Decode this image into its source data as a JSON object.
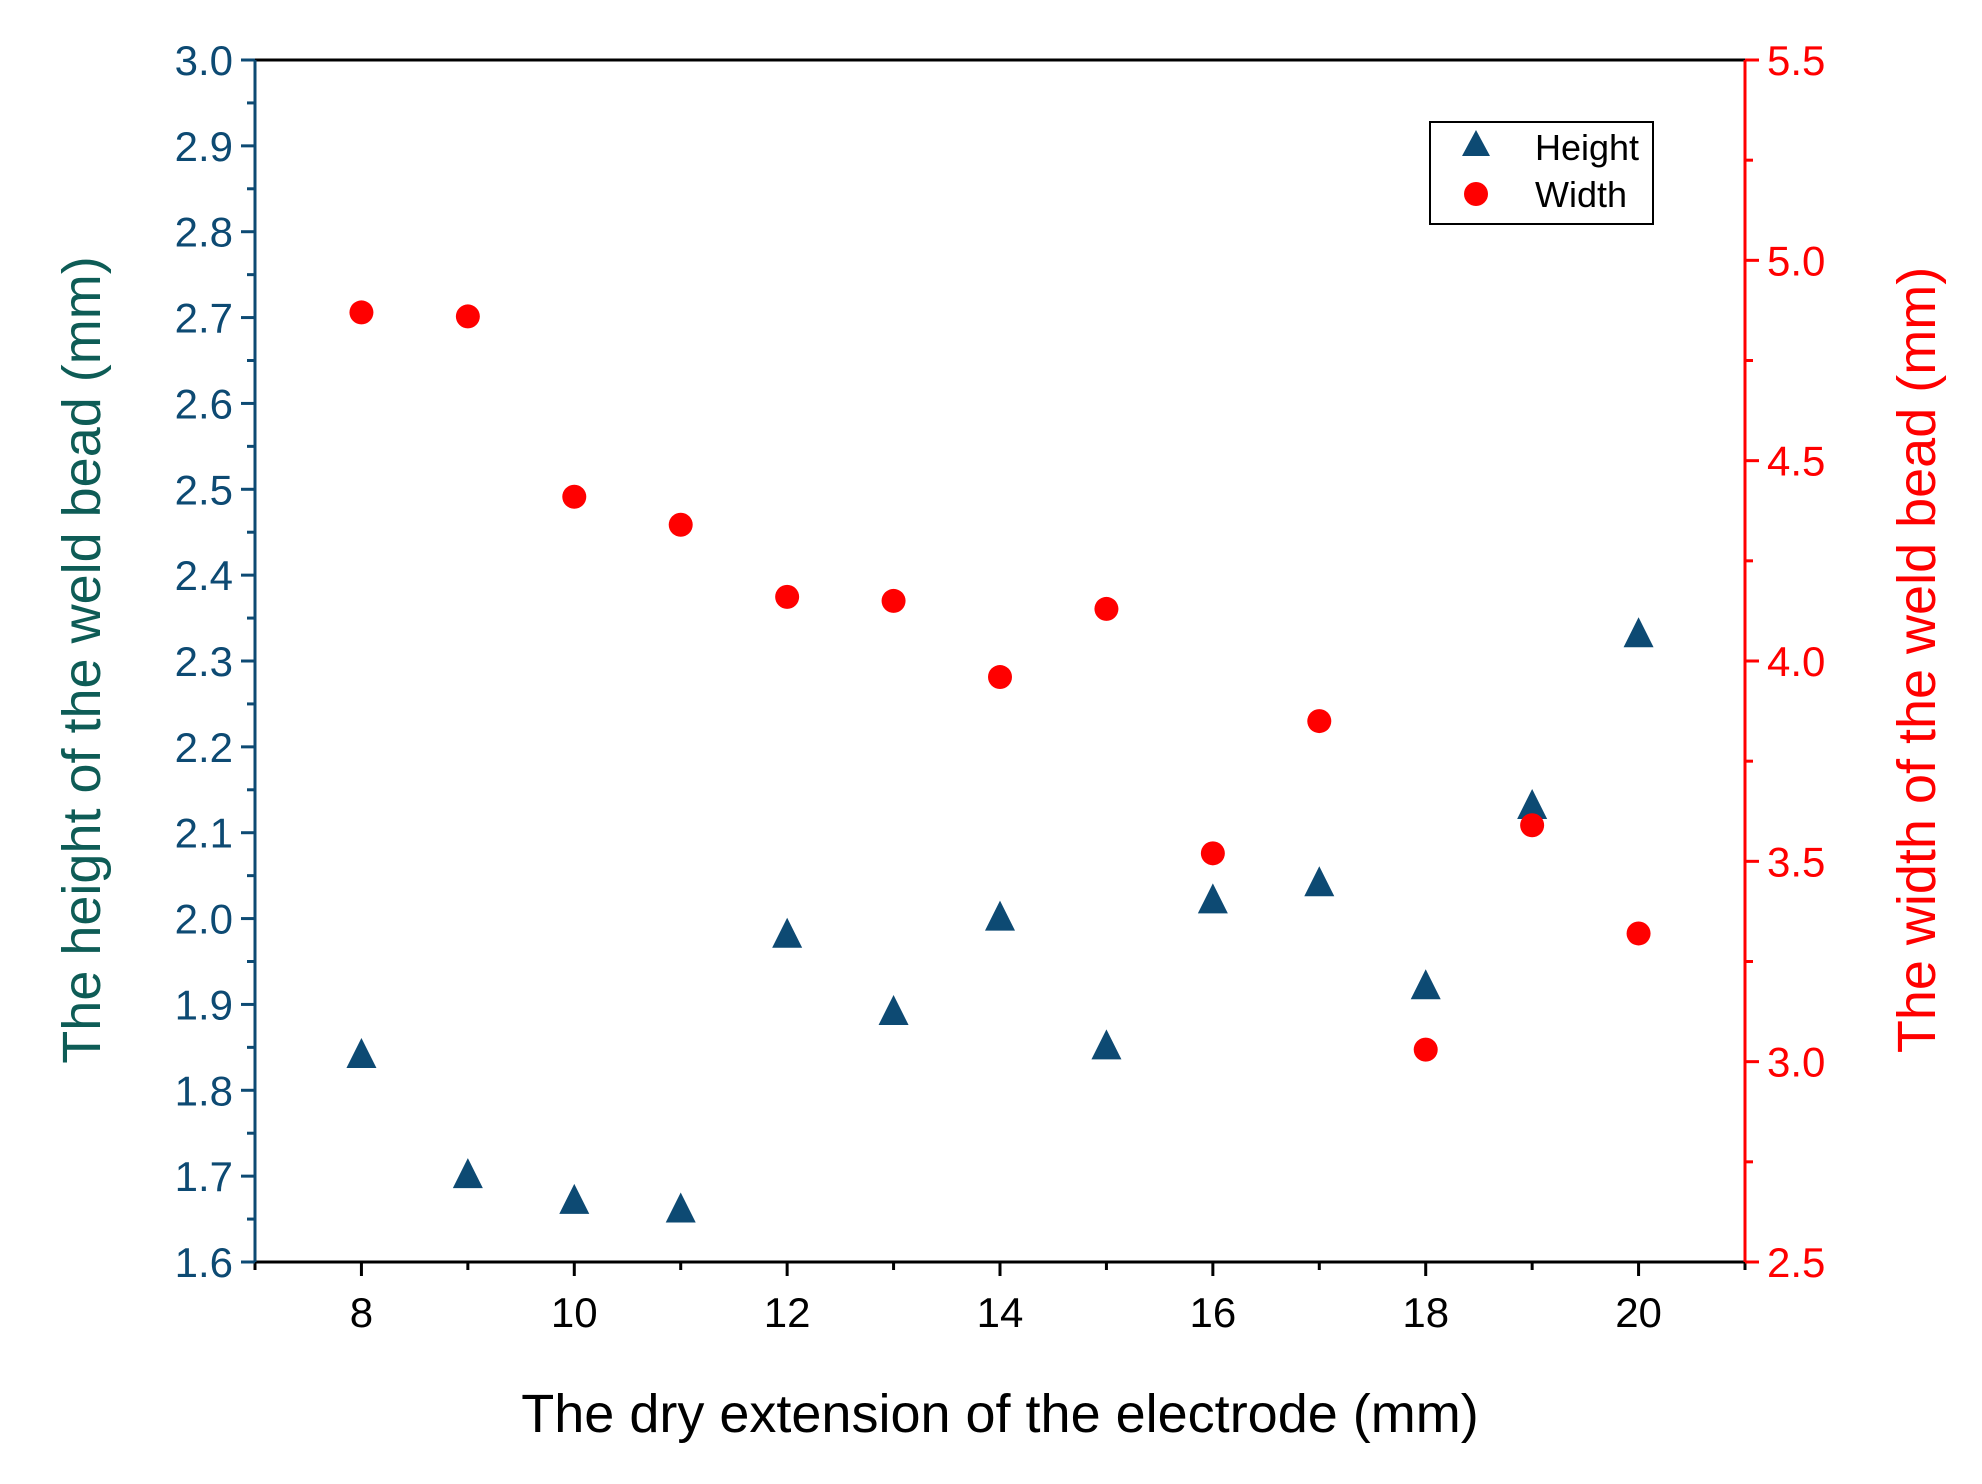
{
  "chart_data": {
    "type": "scatter",
    "title": "",
    "xlabel": "The dry extension of the electrode (mm)",
    "ylabel_left": "The height of the weld bead (mm)",
    "ylabel_right": "The width of the weld bead (mm)",
    "xlim": [
      7,
      21
    ],
    "ylim_left": [
      1.6,
      3.0
    ],
    "ylim_right": [
      2.5,
      5.5
    ],
    "x_ticks": [
      "8",
      "10",
      "12",
      "14",
      "16",
      "18",
      "20"
    ],
    "y_left_ticks": [
      "1.6",
      "1.7",
      "1.8",
      "1.9",
      "2.0",
      "2.1",
      "2.2",
      "2.3",
      "2.4",
      "2.5",
      "2.6",
      "2.7",
      "2.8",
      "2.9",
      "3.0"
    ],
    "y_right_ticks": [
      "2.5",
      "3.0",
      "3.5",
      "4.0",
      "4.5",
      "5.0",
      "5.5"
    ],
    "legend_position": "top-right",
    "series": [
      {
        "name": "Height",
        "axis": "left",
        "marker": "triangle",
        "color": "#0d4a73",
        "x": [
          8,
          9,
          10,
          11,
          12,
          13,
          14,
          15,
          16,
          17,
          18,
          19,
          20
        ],
        "values": [
          1.84,
          1.7,
          1.67,
          1.66,
          1.98,
          1.89,
          2.0,
          1.85,
          2.02,
          2.04,
          1.92,
          2.13,
          2.33
        ]
      },
      {
        "name": "Width",
        "axis": "right",
        "marker": "circle",
        "color": "#ff0000",
        "x": [
          8,
          9,
          10,
          11,
          12,
          13,
          14,
          15,
          16,
          17,
          18,
          19,
          20
        ],
        "values": [
          4.87,
          4.86,
          4.41,
          4.34,
          4.16,
          4.15,
          3.96,
          4.13,
          3.52,
          3.85,
          3.03,
          3.59,
          3.32
        ]
      }
    ],
    "colors": {
      "left_axis": "#0d4a73",
      "left_label": "#0e5c56",
      "right_axis": "#ff0000",
      "frame": "#000000"
    }
  }
}
